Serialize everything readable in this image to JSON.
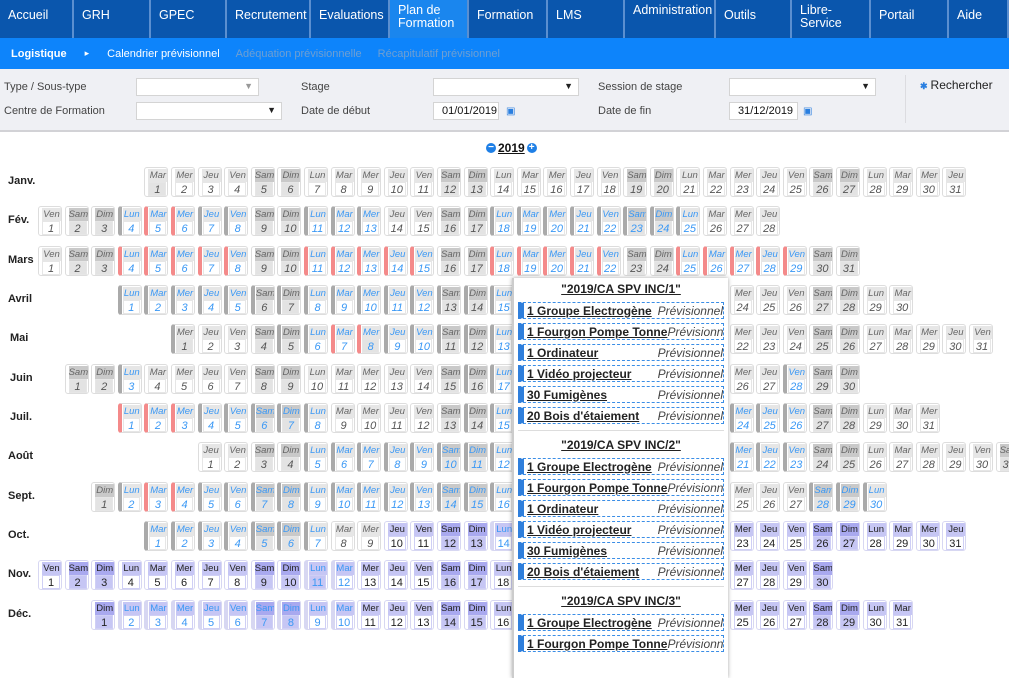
{
  "nav": [
    "Accueil",
    "GRH",
    "GPEC",
    "Recrutement",
    "Evaluations",
    "Plan de Formation",
    "Formation",
    "LMS",
    "Administration",
    "Outils",
    "Libre-Service",
    "Portail",
    "Aide"
  ],
  "nav_active": 5,
  "sub": {
    "section": "Logistique",
    "arrow": "▸",
    "items": [
      "Calendrier prévisionnel",
      "Adéquation prévisionnelle",
      "Récapitulatif prévisionnel"
    ]
  },
  "filters": {
    "type_label": "Type / Sous-type",
    "type_value": "",
    "centre_label": "Centre de Formation",
    "centre_value": "",
    "stage_label": "Stage",
    "stage_value": "",
    "debut_label": "Date de début",
    "debut_value": "01/01/2019",
    "session_label": "Session de stage",
    "session_value": "",
    "fin_label": "Date de fin",
    "fin_value": "31/12/2019",
    "search_label": "Rechercher"
  },
  "year": "2019",
  "weekdays": [
    "Dim",
    "Lun",
    "Mar",
    "Mer",
    "Jeu",
    "Ven",
    "Sam"
  ],
  "legend_codes": {
    ".": "normal",
    "o": "holiday",
    "g": "grey-bar planned",
    "G": "grey-bar",
    "H": "grey-bar holiday",
    "r": "red-bar planned",
    "R": "red-bar planned holiday",
    "v": "purple",
    "p": "purple-bar planned",
    "P": "purple-bar planned holiday",
    "x": "hidden"
  },
  "colors": {
    "nav": "#0a56ad",
    "sub": "#0d84fb",
    "planned": "#3a98f5",
    "bar_grey": "#aaaaaa",
    "bar_red": "#f48a8a",
    "bar_purple": "#6a68f0",
    "purple": "#c6c6f4"
  },
  "months": [
    {
      "label": "Janv.",
      "states": "o.............................."
    },
    {
      "label": "Fév.",
      "states": "...grrgg..ggg....gggggggg..."
    },
    {
      "label": "Mars",
      "states": "...rrrrr..rrrrr..rrrrr..rrrrr.."
    },
    {
      "label": "Avril",
      "states": "gggggGGgggggGGgxxxxxxxx......."
    },
    {
      "label": "Mai",
      "states": "H...GgrRggGGgxxxxxxxx.........."
    },
    {
      "label": "Juin",
      "states": "..g............Ggxxxxxxxx..g.."
    },
    {
      "label": "Juil.",
      "states": "rrrggggg.....Ggxxxxxxxxggg....."
    },
    {
      "label": "Août",
      "states": "....ggggggggxxxxxxxxggg........"
    },
    {
      "label": "Sept.",
      "states": ".grrggggggggggggxxxxxxxx...ggg"
    },
    {
      "label": "Oct.",
      "states": "ggggggg..vvvvpxxxxxxxxvvvvvvvvv"
    },
    {
      "label": "Nov.",
      "states": "vvvvvvvvvvPpvvvvvvxxxxxxxxvvvv"
    },
    {
      "label": "Déc.",
      "states": "vpppppppppvvvvvvxxxxxxxxvvvvvvv"
    }
  ],
  "popup": {
    "groups": [
      {
        "title": "\"2019/CA SPV INC/1\"",
        "items": [
          {
            "name": "1 Groupe Electrogène",
            "status": "Prévisionnel"
          },
          {
            "name": "1 Fourgon Pompe Tonne",
            "status": "Prévisionnel"
          },
          {
            "name": "1 Ordinateur",
            "status": "Prévisionnel"
          },
          {
            "name": "1 Vidéo projecteur",
            "status": "Prévisionnel"
          },
          {
            "name": "30 Fumigènes",
            "status": "Prévisionnel"
          },
          {
            "name": "20 Bois d'étaiement",
            "status": "Prévisionnel"
          }
        ]
      },
      {
        "title": "\"2019/CA SPV INC/2\"",
        "items": [
          {
            "name": "1 Groupe Electrogène",
            "status": "Prévisionnel"
          },
          {
            "name": "1 Fourgon Pompe Tonne",
            "status": "Prévisionnel"
          },
          {
            "name": "1 Ordinateur",
            "status": "Prévisionnel"
          },
          {
            "name": "1 Vidéo projecteur",
            "status": "Prévisionnel"
          },
          {
            "name": "30 Fumigènes",
            "status": "Prévisionnel"
          },
          {
            "name": "20 Bois d'étaiement",
            "status": "Prévisionnel"
          }
        ]
      },
      {
        "title": "\"2019/CA SPV INC/3\"",
        "items": [
          {
            "name": "1 Groupe Electrogène",
            "status": "Prévisionnel"
          },
          {
            "name": "1 Fourgon Pompe Tonne",
            "status": "Prévisionnel"
          }
        ]
      }
    ]
  }
}
